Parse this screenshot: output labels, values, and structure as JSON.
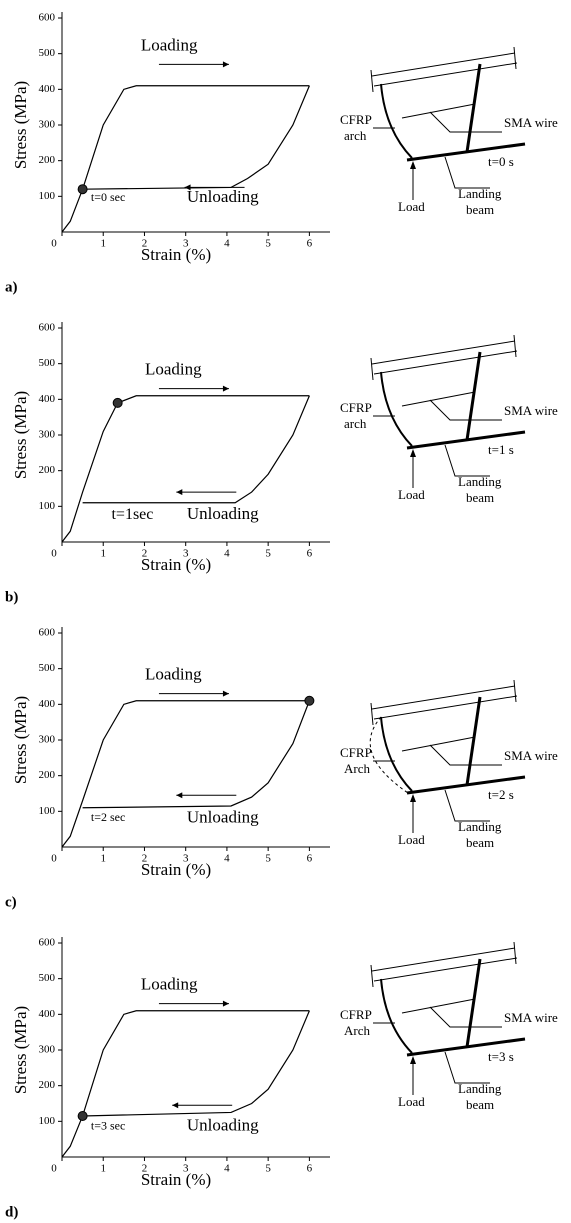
{
  "chart_data": [
    {
      "type": "line",
      "panel_label": "a)",
      "xlabel": "Strain (%)",
      "ylabel": "Stress (MPa)",
      "xlim": [
        0,
        6.5
      ],
      "ylim": [
        0,
        600
      ],
      "xticks": [
        0,
        1,
        2,
        3,
        4,
        5,
        6
      ],
      "yticks": [
        100,
        200,
        300,
        400,
        500,
        600
      ],
      "color": "#000000",
      "series": [
        {
          "x": [
            0,
            0.2,
            0.5,
            1,
            1.5,
            1.8,
            6
          ],
          "values": [
            0,
            30,
            120,
            300,
            400,
            410,
            410
          ]
        },
        {
          "x": [
            6,
            5.6,
            5,
            4.5,
            4.1,
            0.5
          ],
          "values": [
            410,
            300,
            190,
            150,
            125,
            120
          ]
        }
      ],
      "point": {
        "x": 0.5,
        "y": 120
      },
      "annotations": {
        "loading": "Loading",
        "unloading": "Unloading",
        "time": "t=0 sec"
      }
    },
    {
      "type": "line",
      "panel_label": "b)",
      "xlabel": "Strain (%)",
      "ylabel": "Stress (MPa)",
      "xlim": [
        0,
        6.5
      ],
      "ylim": [
        0,
        600
      ],
      "xticks": [
        0,
        1,
        2,
        3,
        4,
        5,
        6
      ],
      "yticks": [
        100,
        200,
        300,
        400,
        500,
        600
      ],
      "color": "#000000",
      "series": [
        {
          "x": [
            0,
            0.2,
            0.5,
            1,
            1.35,
            1.8,
            6
          ],
          "values": [
            0,
            30,
            140,
            310,
            390,
            410,
            410
          ]
        },
        {
          "x": [
            6,
            5.6,
            5,
            4.6,
            4.2,
            0.5
          ],
          "values": [
            410,
            300,
            190,
            140,
            110,
            110
          ]
        }
      ],
      "point": {
        "x": 1.35,
        "y": 390
      },
      "annotations": {
        "loading": "Loading",
        "unloading": "Unloading",
        "time": "t=1sec"
      }
    },
    {
      "type": "line",
      "panel_label": "c)",
      "xlabel": "Strain (%)",
      "ylabel": "Stress (MPa)",
      "xlim": [
        0,
        6.5
      ],
      "ylim": [
        0,
        600
      ],
      "xticks": [
        0,
        1,
        2,
        3,
        4,
        5,
        6
      ],
      "yticks": [
        100,
        200,
        300,
        400,
        500,
        600
      ],
      "color": "#000000",
      "series": [
        {
          "x": [
            0,
            0.2,
            0.5,
            1,
            1.5,
            1.8,
            6
          ],
          "values": [
            0,
            30,
            130,
            300,
            400,
            410,
            410
          ]
        },
        {
          "x": [
            6,
            5.6,
            5,
            4.6,
            4.1,
            0.5
          ],
          "values": [
            410,
            290,
            180,
            140,
            115,
            110
          ]
        }
      ],
      "point": {
        "x": 6,
        "y": 410
      },
      "annotations": {
        "loading": "Loading",
        "unloading": "Unloading",
        "time": "t=2 sec"
      }
    },
    {
      "type": "line",
      "panel_label": "d)",
      "xlabel": "Strain (%)",
      "ylabel": "Stress (MPa)",
      "xlim": [
        0,
        6.5
      ],
      "ylim": [
        0,
        600
      ],
      "xticks": [
        0,
        1,
        2,
        3,
        4,
        5,
        6
      ],
      "yticks": [
        100,
        200,
        300,
        400,
        500,
        600
      ],
      "color": "#000000",
      "series": [
        {
          "x": [
            0,
            0.2,
            0.5,
            1,
            1.5,
            1.8,
            6
          ],
          "values": [
            0,
            30,
            115,
            300,
            400,
            410,
            410
          ]
        },
        {
          "x": [
            6,
            5.6,
            5,
            4.6,
            4.1,
            0.5
          ],
          "values": [
            410,
            300,
            190,
            150,
            125,
            115
          ]
        }
      ],
      "point": {
        "x": 0.5,
        "y": 115
      },
      "annotations": {
        "loading": "Loading",
        "unloading": "Unloading",
        "time": "t=3 sec"
      }
    }
  ],
  "diagrams": [
    {
      "arch": [
        "CFRP",
        "arch"
      ],
      "wire": "SMA wire",
      "time": "t=0 s",
      "load": "Load",
      "beam": [
        "Landing",
        "beam"
      ]
    },
    {
      "arch": [
        "CFRP",
        "arch"
      ],
      "wire": "SMA wire",
      "time": "t=1 s",
      "load": "Load",
      "beam": [
        "Landing",
        "beam"
      ]
    },
    {
      "arch": [
        "CFRP",
        "Arch"
      ],
      "wire": "SMA wire",
      "time": "t=2 s",
      "load": "Load",
      "beam": [
        "Landing",
        "beam"
      ]
    },
    {
      "arch": [
        "CFRP",
        "Arch"
      ],
      "wire": "SMA wire",
      "time": "t=3 s",
      "load": "Load",
      "beam": [
        "Landing",
        "beam"
      ]
    }
  ]
}
